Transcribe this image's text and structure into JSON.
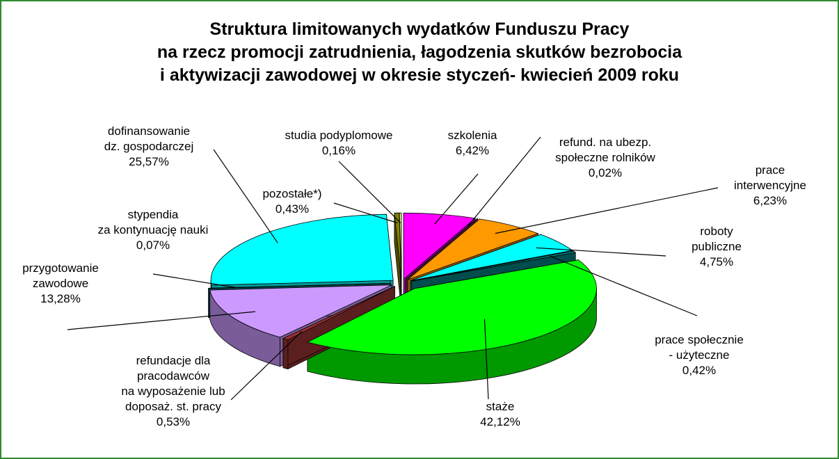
{
  "chart_data": {
    "type": "pie",
    "title": "Struktura limitowanych wydatków Funduszu Pracy\nna rzecz promocji zatrudnienia, łagodzenia skutków bezrobocia\ni aktywizacji zawodowej w okresie styczeń- kwiecień 2009 roku",
    "categories": [
      "szkolenia",
      "refund. na ubezp.\nspołeczne rolników",
      "prace\ninterwencyjne",
      "roboty\npubliczne",
      "prace społecznie\n- użyteczne",
      "staże",
      "refundacje dla\npracodawców\nna wyposażenie lub\ndoposaż. st. pracy",
      "przygotowanie\nzawodowe",
      "stypendia\nza kontynuację nauki",
      "dofinansowanie\ndz. gospodarczej",
      "pozostałe*)",
      "studia podyplomowe"
    ],
    "values": [
      6.42,
      0.02,
      6.23,
      4.75,
      0.42,
      42.12,
      0.53,
      13.28,
      0.07,
      25.57,
      0.43,
      0.16
    ],
    "value_labels": [
      "6,42%",
      "0,02%",
      "6,23%",
      "4,75%",
      "0,42%",
      "42,12%",
      "0,53%",
      "13,28%",
      "0,07%",
      "25,57%",
      "0,43%",
      "0,16%"
    ],
    "colors": [
      "#ff00ff",
      "#993366",
      "#ff9900",
      "#00ffff",
      "#008080",
      "#00ff00",
      "#993333",
      "#cc99ff",
      "#008080",
      "#00ffff",
      "#808000",
      "#ffff99"
    ]
  }
}
